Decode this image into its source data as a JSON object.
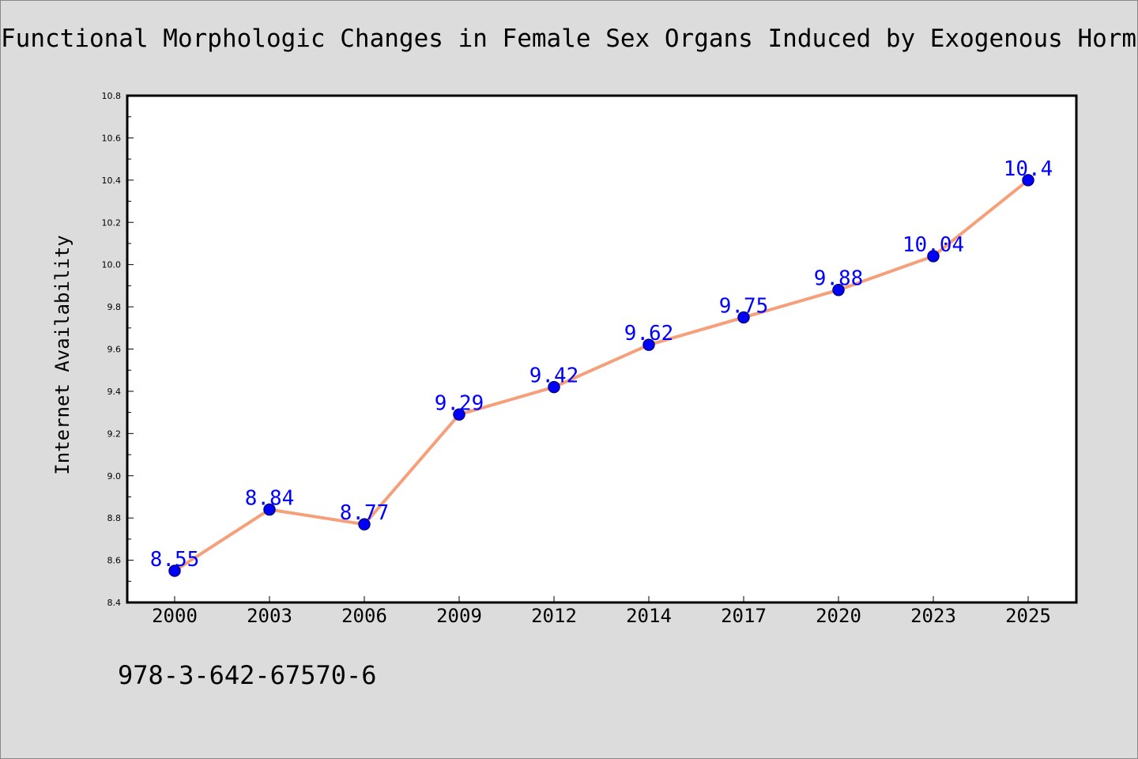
{
  "chart_data": {
    "type": "line",
    "title": "Functional Morphologic Changes in Female Sex Organs Induced by Exogenous Hormones",
    "xlabel": "",
    "ylabel": "Internet Availability",
    "categories": [
      "2000",
      "2003",
      "2006",
      "2009",
      "2012",
      "2014",
      "2017",
      "2020",
      "2023",
      "2025"
    ],
    "series": [
      {
        "values": [
          8.55,
          8.84,
          8.77,
          9.29,
          9.42,
          9.62,
          9.75,
          9.88,
          10.04,
          10.4
        ]
      }
    ],
    "data_labels": [
      "8.55",
      "8.84",
      "8.77",
      "9.29",
      "9.42",
      "9.62",
      "9.75",
      "9.88",
      "10.04",
      "10.4"
    ],
    "ylim": [
      8.4,
      10.8
    ],
    "yticks": [
      "8.4",
      "8.6",
      "8.8",
      "9.0",
      "9.2",
      "9.4",
      "9.6",
      "9.8",
      "10.0",
      "10.2",
      "10.4",
      "10.6",
      "10.8"
    ],
    "grid": false,
    "legend": "none",
    "colors": {
      "line": "#f5a07a",
      "marker": "#0000ff",
      "marker_edge": "#000080",
      "data_label": "#0000ff",
      "background": "#dcdcdc",
      "plot_background": "#ffffff"
    }
  },
  "footer": {
    "code": "978-3-642-67570-6"
  }
}
